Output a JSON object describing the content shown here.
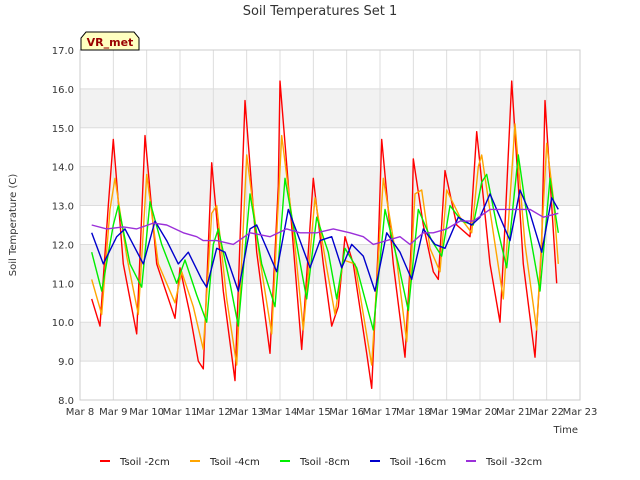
{
  "chart_data": {
    "type": "line",
    "title": "Soil Temperatures Set 1",
    "xlabel": "Time",
    "ylabel": "Soil Temperature (C)",
    "ylim": [
      8.0,
      17.0
    ],
    "xlim": [
      "Mar 8",
      "Mar 23"
    ],
    "y_ticks": [
      "8.0",
      "9.0",
      "10.0",
      "11.0",
      "12.0",
      "13.0",
      "14.0",
      "15.0",
      "16.0",
      "17.0"
    ],
    "x_ticks": [
      "Mar 8",
      "Mar 9",
      "Mar 10",
      "Mar 11",
      "Mar 12",
      "Mar 13",
      "Mar 14",
      "Mar 15",
      "Mar 16",
      "Mar 17",
      "Mar 18",
      "Mar 19",
      "Mar 20",
      "Mar 21",
      "Mar 22",
      "Mar 23"
    ],
    "grid": true,
    "legend_position": "bottom",
    "badge": "VR_met",
    "series": [
      {
        "name": "Tsoil -2cm",
        "color": "#ff0000",
        "points": [
          [
            8.35,
            10.6
          ],
          [
            8.6,
            9.9
          ],
          [
            8.85,
            13.0
          ],
          [
            9.0,
            14.7
          ],
          [
            9.3,
            11.5
          ],
          [
            9.7,
            9.7
          ],
          [
            9.95,
            14.8
          ],
          [
            10.3,
            11.5
          ],
          [
            10.85,
            10.1
          ],
          [
            11.0,
            11.4
          ],
          [
            11.3,
            10.2
          ],
          [
            11.55,
            9.0
          ],
          [
            11.7,
            8.8
          ],
          [
            11.95,
            14.1
          ],
          [
            12.3,
            10.8
          ],
          [
            12.65,
            8.5
          ],
          [
            12.95,
            15.7
          ],
          [
            13.3,
            11.8
          ],
          [
            13.7,
            9.2
          ],
          [
            13.95,
            13.5
          ],
          [
            14.0,
            16.2
          ],
          [
            14.3,
            13.0
          ],
          [
            14.65,
            9.3
          ],
          [
            15.0,
            13.7
          ],
          [
            15.3,
            11.5
          ],
          [
            15.55,
            9.9
          ],
          [
            15.75,
            10.4
          ],
          [
            15.95,
            12.2
          ],
          [
            16.2,
            11.5
          ],
          [
            16.6,
            9.2
          ],
          [
            16.75,
            8.3
          ],
          [
            16.95,
            12.0
          ],
          [
            17.05,
            14.7
          ],
          [
            17.4,
            11.5
          ],
          [
            17.75,
            9.1
          ],
          [
            17.95,
            12.2
          ],
          [
            18.0,
            14.2
          ],
          [
            18.3,
            12.5
          ],
          [
            18.6,
            11.3
          ],
          [
            18.75,
            11.1
          ],
          [
            18.95,
            13.9
          ],
          [
            19.3,
            12.5
          ],
          [
            19.7,
            12.2
          ],
          [
            19.9,
            14.9
          ],
          [
            20.3,
            11.5
          ],
          [
            20.6,
            10.0
          ],
          [
            20.75,
            12.5
          ],
          [
            20.95,
            16.2
          ],
          [
            21.3,
            11.5
          ],
          [
            21.65,
            9.1
          ],
          [
            21.85,
            12.0
          ],
          [
            21.95,
            15.7
          ],
          [
            22.15,
            13.0
          ],
          [
            22.3,
            11.0
          ]
        ]
      },
      {
        "name": "Tsoil -4cm",
        "color": "#ffa500",
        "points": [
          [
            8.35,
            11.1
          ],
          [
            8.65,
            10.2
          ],
          [
            8.9,
            12.9
          ],
          [
            9.05,
            13.7
          ],
          [
            9.4,
            11.7
          ],
          [
            9.75,
            10.2
          ],
          [
            10.0,
            13.8
          ],
          [
            10.35,
            11.5
          ],
          [
            10.85,
            10.5
          ],
          [
            11.05,
            11.3
          ],
          [
            11.4,
            10.4
          ],
          [
            11.7,
            9.3
          ],
          [
            11.95,
            12.8
          ],
          [
            12.1,
            13.0
          ],
          [
            12.4,
            10.6
          ],
          [
            12.7,
            8.9
          ],
          [
            13.0,
            14.3
          ],
          [
            13.4,
            11.6
          ],
          [
            13.75,
            9.7
          ],
          [
            14.05,
            14.8
          ],
          [
            14.4,
            12.4
          ],
          [
            14.7,
            9.8
          ],
          [
            15.05,
            13.2
          ],
          [
            15.4,
            11.4
          ],
          [
            15.65,
            10.2
          ],
          [
            15.9,
            11.6
          ],
          [
            16.25,
            11.5
          ],
          [
            16.75,
            8.9
          ],
          [
            17.1,
            13.7
          ],
          [
            17.5,
            11.6
          ],
          [
            17.8,
            9.5
          ],
          [
            18.05,
            13.3
          ],
          [
            18.25,
            13.4
          ],
          [
            18.5,
            11.9
          ],
          [
            18.8,
            11.3
          ],
          [
            19.0,
            13.4
          ],
          [
            19.4,
            12.7
          ],
          [
            19.75,
            12.3
          ],
          [
            19.95,
            14.0
          ],
          [
            20.05,
            14.3
          ],
          [
            20.4,
            12.3
          ],
          [
            20.7,
            10.6
          ],
          [
            21.05,
            15.1
          ],
          [
            21.35,
            12.0
          ],
          [
            21.7,
            9.8
          ],
          [
            22.0,
            14.6
          ],
          [
            22.2,
            13.2
          ],
          [
            22.35,
            11.5
          ]
        ]
      },
      {
        "name": "Tsoil -8cm",
        "color": "#00ee00",
        "points": [
          [
            8.35,
            11.8
          ],
          [
            8.65,
            10.8
          ],
          [
            9.0,
            12.5
          ],
          [
            9.15,
            13.0
          ],
          [
            9.5,
            11.5
          ],
          [
            9.85,
            10.9
          ],
          [
            10.1,
            13.1
          ],
          [
            10.45,
            12.0
          ],
          [
            10.9,
            11.0
          ],
          [
            11.15,
            11.6
          ],
          [
            11.5,
            10.7
          ],
          [
            11.8,
            10.0
          ],
          [
            12.0,
            12.0
          ],
          [
            12.15,
            12.4
          ],
          [
            12.5,
            11.0
          ],
          [
            12.75,
            9.9
          ],
          [
            13.1,
            13.3
          ],
          [
            13.45,
            11.5
          ],
          [
            13.85,
            10.4
          ],
          [
            14.15,
            13.7
          ],
          [
            14.5,
            12.0
          ],
          [
            14.8,
            10.6
          ],
          [
            15.1,
            12.7
          ],
          [
            15.45,
            11.8
          ],
          [
            15.7,
            10.6
          ],
          [
            15.95,
            11.9
          ],
          [
            16.3,
            11.4
          ],
          [
            16.8,
            9.8
          ],
          [
            17.15,
            12.9
          ],
          [
            17.55,
            11.5
          ],
          [
            17.85,
            10.3
          ],
          [
            18.15,
            12.9
          ],
          [
            18.55,
            12.1
          ],
          [
            18.85,
            11.7
          ],
          [
            19.1,
            13.0
          ],
          [
            19.45,
            12.6
          ],
          [
            19.8,
            12.5
          ],
          [
            20.05,
            13.6
          ],
          [
            20.2,
            13.8
          ],
          [
            20.5,
            12.5
          ],
          [
            20.8,
            11.4
          ],
          [
            21.15,
            14.3
          ],
          [
            21.45,
            12.5
          ],
          [
            21.8,
            10.8
          ],
          [
            22.1,
            13.7
          ],
          [
            22.35,
            12.3
          ]
        ]
      },
      {
        "name": "Tsoil -16cm",
        "color": "#0000cc",
        "points": [
          [
            8.35,
            12.3
          ],
          [
            8.7,
            11.5
          ],
          [
            9.1,
            12.2
          ],
          [
            9.35,
            12.4
          ],
          [
            9.9,
            11.5
          ],
          [
            10.25,
            12.6
          ],
          [
            10.6,
            12.1
          ],
          [
            10.95,
            11.5
          ],
          [
            11.25,
            11.8
          ],
          [
            11.65,
            11.1
          ],
          [
            11.8,
            10.9
          ],
          [
            12.1,
            11.9
          ],
          [
            12.35,
            11.8
          ],
          [
            12.75,
            10.8
          ],
          [
            13.1,
            12.4
          ],
          [
            13.3,
            12.5
          ],
          [
            13.9,
            11.3
          ],
          [
            14.25,
            12.9
          ],
          [
            14.6,
            12.1
          ],
          [
            14.9,
            11.4
          ],
          [
            15.2,
            12.1
          ],
          [
            15.55,
            12.2
          ],
          [
            15.85,
            11.4
          ],
          [
            16.15,
            12.0
          ],
          [
            16.5,
            11.7
          ],
          [
            16.85,
            10.8
          ],
          [
            17.2,
            12.3
          ],
          [
            17.6,
            11.8
          ],
          [
            17.95,
            11.1
          ],
          [
            18.3,
            12.4
          ],
          [
            18.65,
            12.0
          ],
          [
            18.95,
            11.9
          ],
          [
            19.35,
            12.7
          ],
          [
            19.75,
            12.5
          ],
          [
            20.0,
            12.7
          ],
          [
            20.3,
            13.3
          ],
          [
            20.55,
            12.8
          ],
          [
            20.9,
            12.1
          ],
          [
            21.2,
            13.4
          ],
          [
            21.5,
            12.8
          ],
          [
            21.85,
            11.8
          ],
          [
            22.15,
            13.2
          ],
          [
            22.35,
            12.9
          ]
        ]
      },
      {
        "name": "Tsoil -32cm",
        "color": "#9b30d9",
        "points": [
          [
            8.35,
            12.5
          ],
          [
            8.8,
            12.4
          ],
          [
            9.3,
            12.45
          ],
          [
            9.7,
            12.4
          ],
          [
            10.2,
            12.55
          ],
          [
            10.6,
            12.5
          ],
          [
            11.1,
            12.3
          ],
          [
            11.5,
            12.2
          ],
          [
            11.7,
            12.1
          ],
          [
            12.1,
            12.1
          ],
          [
            12.6,
            12.0
          ],
          [
            13.1,
            12.3
          ],
          [
            13.7,
            12.2
          ],
          [
            14.2,
            12.4
          ],
          [
            14.6,
            12.3
          ],
          [
            15.1,
            12.3
          ],
          [
            15.6,
            12.4
          ],
          [
            16.1,
            12.3
          ],
          [
            16.5,
            12.2
          ],
          [
            16.8,
            12.0
          ],
          [
            17.2,
            12.1
          ],
          [
            17.6,
            12.2
          ],
          [
            17.9,
            12.0
          ],
          [
            18.3,
            12.3
          ],
          [
            18.6,
            12.3
          ],
          [
            19.0,
            12.4
          ],
          [
            19.4,
            12.6
          ],
          [
            19.8,
            12.6
          ],
          [
            20.3,
            12.9
          ],
          [
            20.7,
            12.9
          ],
          [
            21.1,
            12.9
          ],
          [
            21.5,
            12.9
          ],
          [
            21.9,
            12.7
          ],
          [
            22.35,
            12.8
          ]
        ]
      }
    ]
  }
}
